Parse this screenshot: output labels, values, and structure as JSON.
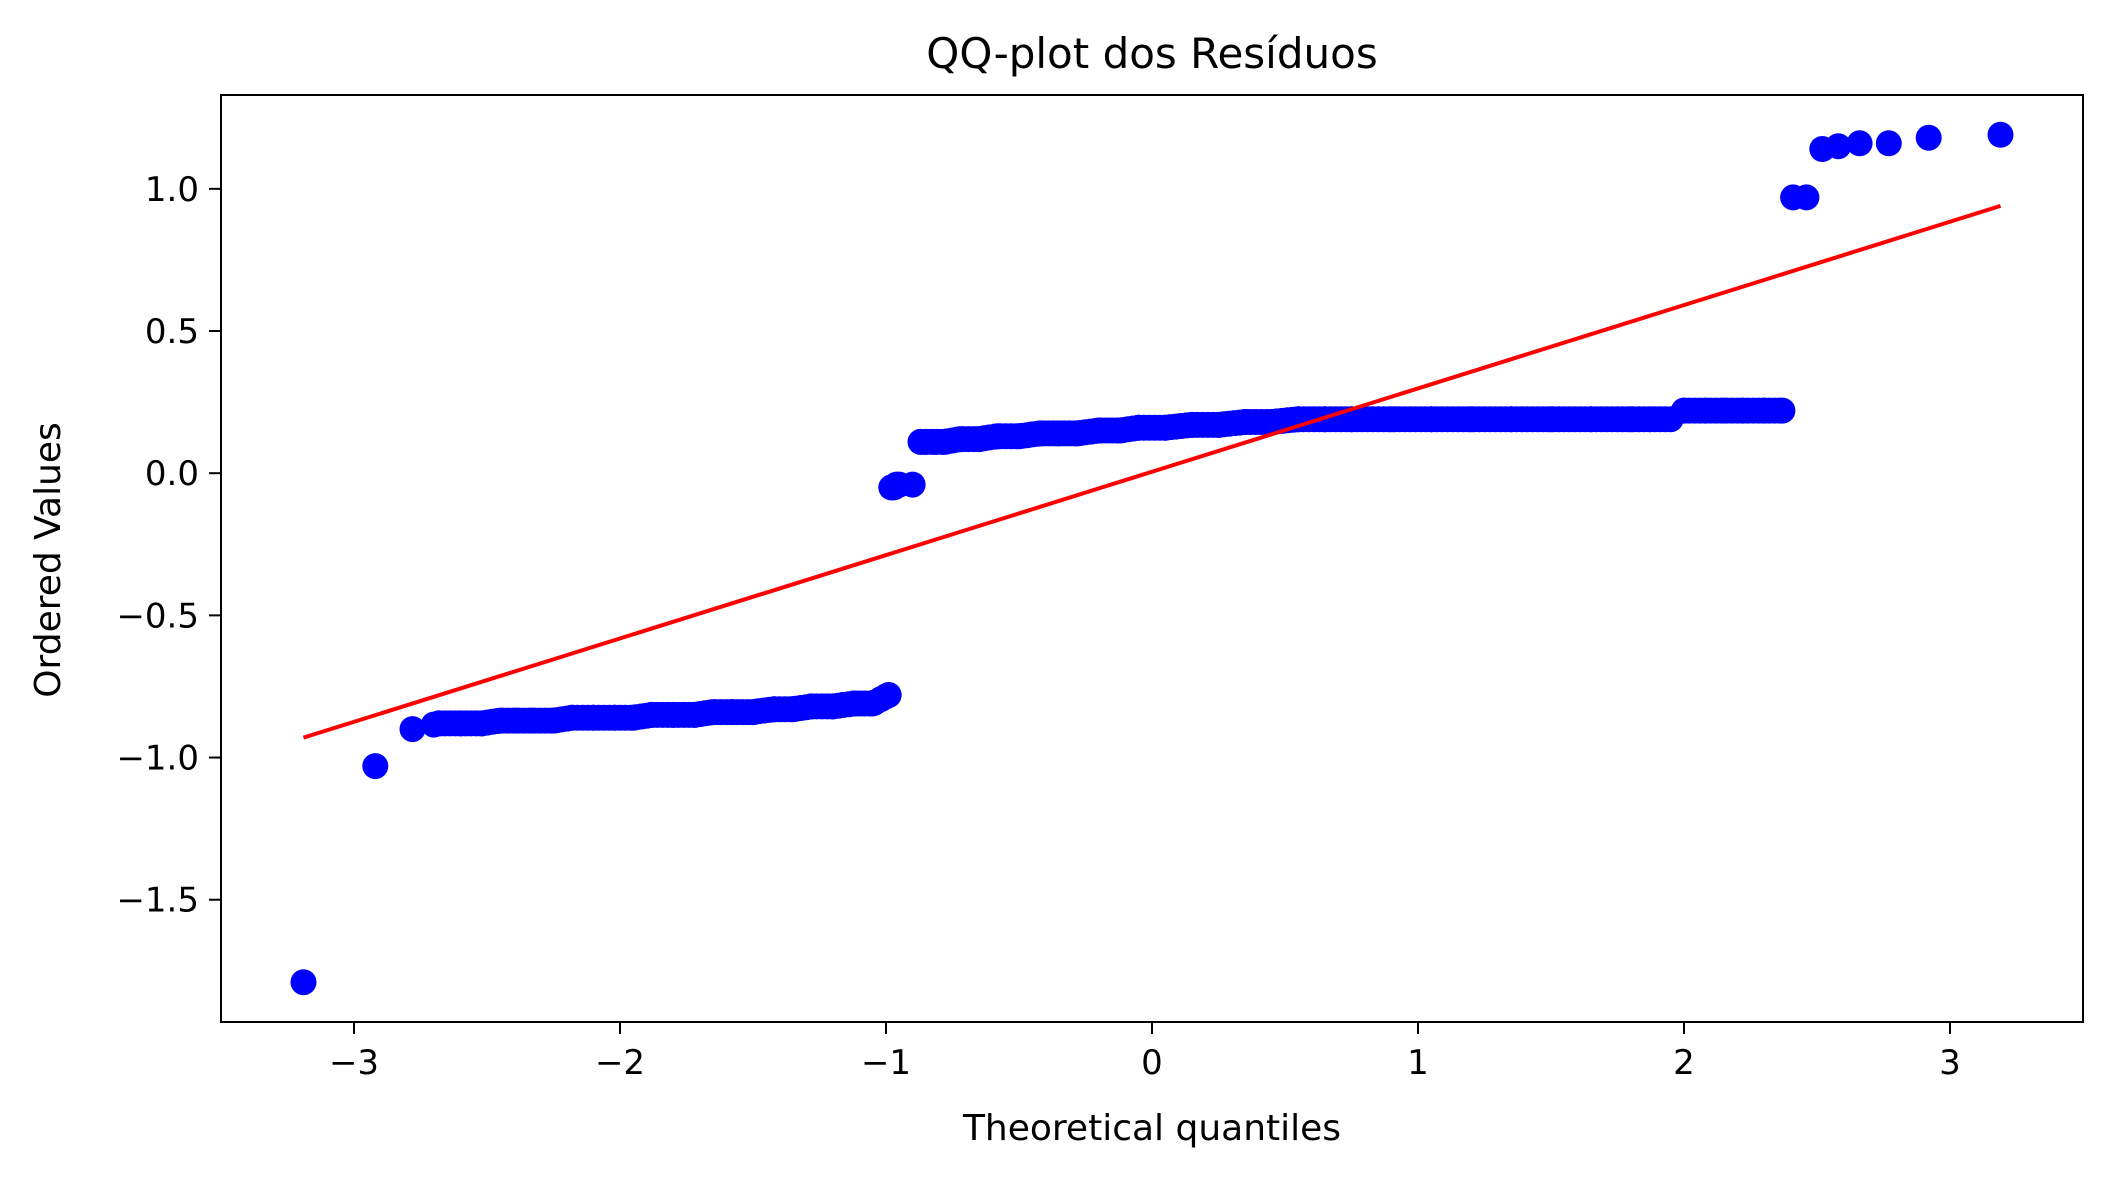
{
  "chart_data": {
    "type": "scatter",
    "title": "QQ-plot dos Resíduos",
    "xlabel": "Theoretical quantiles",
    "ylabel": "Ordered Values",
    "xlim": [
      -3.5,
      3.5
    ],
    "ylim": [
      -1.93,
      1.33
    ],
    "xticks": [
      -3,
      -2,
      -1,
      0,
      1,
      2,
      3
    ],
    "xtick_labels": [
      "−3",
      "−2",
      "−1",
      "0",
      "1",
      "2",
      "3"
    ],
    "yticks": [
      -1.5,
      -1.0,
      -0.5,
      0.0,
      0.5,
      1.0
    ],
    "ytick_labels": [
      "−1.5",
      "−1.0",
      "−0.5",
      "0.0",
      "0.5",
      "1.0"
    ],
    "grid": false,
    "legend": "none",
    "point_color": "#0000ff",
    "line_color": "#ff0000",
    "fit_line": {
      "x": [
        -3.19,
        3.19
      ],
      "y": [
        -0.93,
        0.94
      ]
    },
    "series": [
      {
        "x": [
          -3.19,
          -2.92,
          -2.78,
          -2.68,
          -2.6,
          -2.52,
          -2.45,
          -2.39,
          -2.33,
          -2.25,
          -2.18,
          -2.1,
          -2.02,
          -1.95,
          -1.88,
          -1.8,
          -1.72,
          -1.65,
          -1.58,
          -1.5,
          -1.42,
          -1.35,
          -1.28,
          -1.2,
          -1.12,
          -1.05,
          -0.99,
          -0.98,
          -0.97,
          -0.96,
          -0.95,
          -0.9,
          -0.87,
          -0.85,
          -0.82,
          -0.78,
          -0.72,
          -0.65,
          -0.58,
          -0.5,
          -0.42,
          -0.35,
          -0.28,
          -0.2,
          -0.12,
          -0.05,
          0.05,
          0.15,
          0.25,
          0.35,
          0.45,
          0.55,
          0.65,
          0.75,
          0.9,
          1.05,
          1.2,
          1.35,
          1.5,
          1.65,
          1.8,
          1.95,
          2.0,
          2.08,
          2.15,
          2.22,
          2.3,
          2.37,
          2.41,
          2.46,
          2.52,
          2.58,
          2.66,
          2.77,
          2.92,
          3.19
        ],
        "y": [
          -1.79,
          -1.03,
          -0.9,
          -0.88,
          -0.88,
          -0.88,
          -0.87,
          -0.87,
          -0.87,
          -0.87,
          -0.86,
          -0.86,
          -0.86,
          -0.86,
          -0.85,
          -0.85,
          -0.85,
          -0.84,
          -0.84,
          -0.84,
          -0.83,
          -0.83,
          -0.82,
          -0.82,
          -0.81,
          -0.81,
          -0.78,
          -0.05,
          -0.05,
          -0.04,
          -0.04,
          -0.04,
          0.11,
          0.11,
          0.11,
          0.11,
          0.12,
          0.12,
          0.13,
          0.13,
          0.14,
          0.14,
          0.14,
          0.15,
          0.15,
          0.16,
          0.16,
          0.17,
          0.17,
          0.18,
          0.18,
          0.19,
          0.19,
          0.19,
          0.19,
          0.19,
          0.19,
          0.19,
          0.19,
          0.19,
          0.19,
          0.19,
          0.22,
          0.22,
          0.22,
          0.22,
          0.22,
          0.22,
          0.97,
          0.97,
          1.14,
          1.15,
          1.16,
          1.16,
          1.18,
          1.19
        ]
      }
    ]
  }
}
